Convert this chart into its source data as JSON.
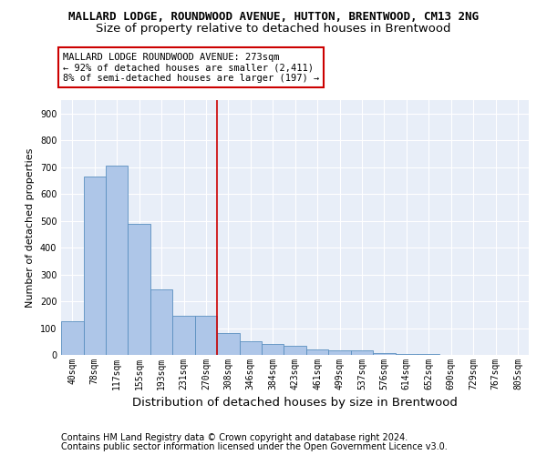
{
  "title": "MALLARD LODGE, ROUNDWOOD AVENUE, HUTTON, BRENTWOOD, CM13 2NG",
  "subtitle": "Size of property relative to detached houses in Brentwood",
  "xlabel": "Distribution of detached houses by size in Brentwood",
  "ylabel": "Number of detached properties",
  "categories": [
    "40sqm",
    "78sqm",
    "117sqm",
    "155sqm",
    "193sqm",
    "231sqm",
    "270sqm",
    "308sqm",
    "346sqm",
    "384sqm",
    "423sqm",
    "461sqm",
    "499sqm",
    "537sqm",
    "576sqm",
    "614sqm",
    "652sqm",
    "690sqm",
    "729sqm",
    "767sqm",
    "805sqm"
  ],
  "values": [
    125,
    665,
    705,
    490,
    245,
    145,
    145,
    80,
    50,
    40,
    35,
    20,
    17,
    17,
    7,
    5,
    2,
    1,
    1,
    1,
    1
  ],
  "bar_color": "#aec6e8",
  "bar_edge_color": "#5a8fc0",
  "vline_x": 6.5,
  "vline_color": "#cc0000",
  "annotation_box_text": "MALLARD LODGE ROUNDWOOD AVENUE: 273sqm\n← 92% of detached houses are smaller (2,411)\n8% of semi-detached houses are larger (197) →",
  "annotation_box_color": "#cc0000",
  "ylim": [
    0,
    950
  ],
  "yticks": [
    0,
    100,
    200,
    300,
    400,
    500,
    600,
    700,
    800,
    900
  ],
  "footer_line1": "Contains HM Land Registry data © Crown copyright and database right 2024.",
  "footer_line2": "Contains public sector information licensed under the Open Government Licence v3.0.",
  "bg_color": "#e8eef8",
  "grid_color": "#ffffff",
  "title_fontsize": 9.0,
  "subtitle_fontsize": 9.5,
  "xlabel_fontsize": 9.5,
  "ylabel_fontsize": 8,
  "tick_fontsize": 7,
  "footer_fontsize": 7,
  "annotation_fontsize": 7.5
}
